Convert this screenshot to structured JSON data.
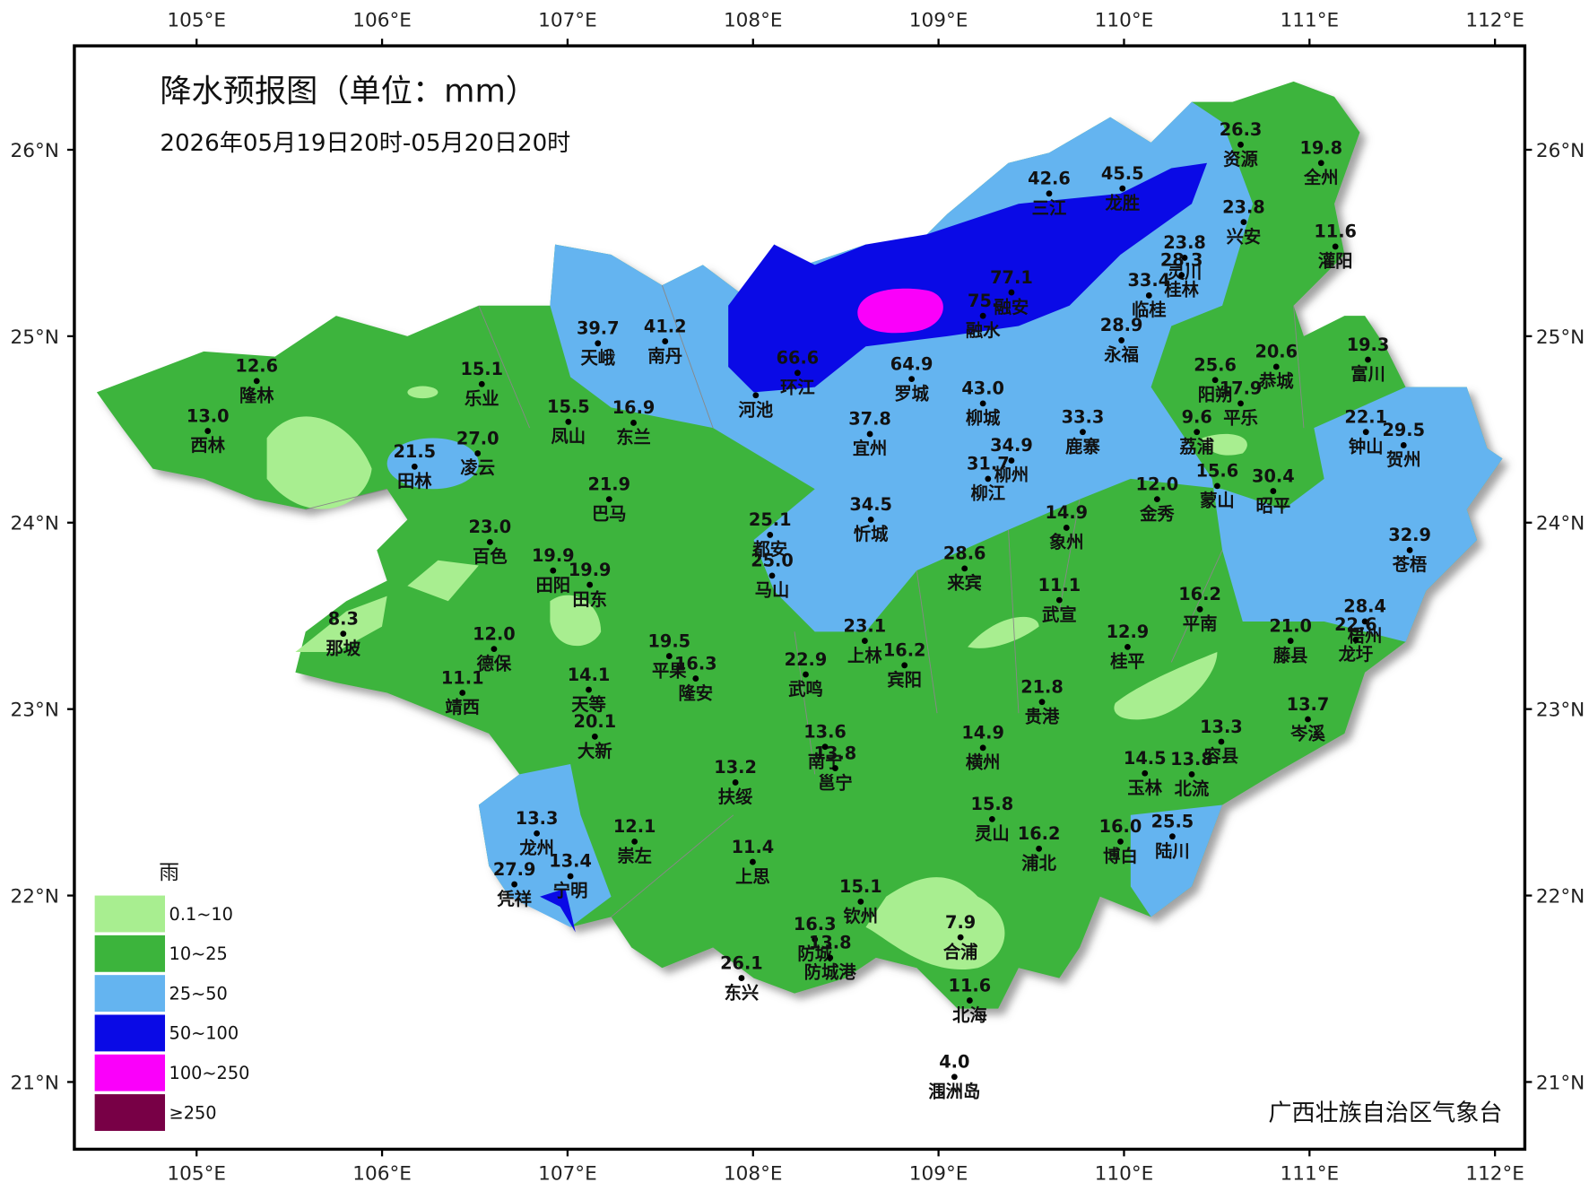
{
  "title": "降水预报图（单位：mm）",
  "subtitle": "2026年05月19日20时-05月20日20时",
  "lon_labels": [
    "105°E",
    "106°E",
    "107°E",
    "108°E",
    "109°E",
    "110°E",
    "111°E",
    "112°E"
  ],
  "lat_labels": [
    "26°N",
    "25°N",
    "24°N",
    "23°N",
    "22°N",
    "21°N"
  ],
  "legend": {
    "title": "雨",
    "items": [
      {
        "label": "0.1~10",
        "color": "#a8ee90"
      },
      {
        "label": "10~25",
        "color": "#3cb43c"
      },
      {
        "label": "25~50",
        "color": "#64b4f0"
      },
      {
        "label": "50~100",
        "color": "#0a0ae6"
      },
      {
        "label": "100~250",
        "color": "#fa00fa"
      },
      {
        "label": "≥250",
        "color": "#780046"
      }
    ]
  },
  "stations": [
    {
      "name": "资源",
      "value": "26.3"
    },
    {
      "name": "全州",
      "value": "19.8"
    },
    {
      "name": "兴安",
      "value": "23.8"
    },
    {
      "name": "灌阳",
      "value": "11.6"
    },
    {
      "name": "三江",
      "value": "42.6"
    },
    {
      "name": "龙胜",
      "value": "45.5"
    },
    {
      "name": "灵川",
      "value": "23.8"
    },
    {
      "name": "桂林",
      "value": "28.3"
    },
    {
      "name": "临桂",
      "value": "33.4"
    },
    {
      "name": "融安",
      "value": "77.1"
    },
    {
      "name": "融水",
      "value": "75."
    },
    {
      "name": "永福",
      "value": "28.9"
    },
    {
      "name": "天峨",
      "value": "39.7"
    },
    {
      "name": "南丹",
      "value": "41.2"
    },
    {
      "name": "环江",
      "value": "66.6"
    },
    {
      "name": "河池"
    },
    {
      "name": "罗城",
      "value": "64.9"
    },
    {
      "name": "柳城",
      "value": "43.0"
    },
    {
      "name": "鹿寨",
      "value": "33.3"
    },
    {
      "name": "阳朔",
      "value": "25.6"
    },
    {
      "name": "平乐",
      "value": "17.9"
    },
    {
      "name": "恭城",
      "value": "20.6"
    },
    {
      "name": "富川",
      "value": "19.3"
    },
    {
      "name": "荔浦",
      "value": "9.6"
    },
    {
      "name": "钟山",
      "value": "22.1"
    },
    {
      "name": "贺州",
      "value": "29.5"
    },
    {
      "name": "隆林",
      "value": "12.6"
    },
    {
      "name": "乐业",
      "value": "15.1"
    },
    {
      "name": "西林",
      "value": "13.0"
    },
    {
      "name": "凤山",
      "value": "15.5"
    },
    {
      "name": "东兰",
      "value": "16.9"
    },
    {
      "name": "田林",
      "value": "21.5"
    },
    {
      "name": "凌云",
      "value": "27.0"
    },
    {
      "name": "宜州",
      "value": "37.8"
    },
    {
      "name": "柳州",
      "value": "34.9"
    },
    {
      "name": "柳江",
      "value": "31.7"
    },
    {
      "name": "巴马",
      "value": "21.9"
    },
    {
      "name": "金秀",
      "value": "12.0"
    },
    {
      "name": "蒙山",
      "value": "15.6"
    },
    {
      "name": "昭平",
      "value": "30.4"
    },
    {
      "name": "忻城",
      "value": "34.5"
    },
    {
      "name": "象州",
      "value": "14.9"
    },
    {
      "name": "百色",
      "value": "23.0"
    },
    {
      "name": "都安",
      "value": "25.1"
    },
    {
      "name": "马山",
      "value": "25.0"
    },
    {
      "name": "田阳",
      "value": "19.9"
    },
    {
      "name": "田东",
      "value": "19.9"
    },
    {
      "name": "来宾",
      "value": "28.6"
    },
    {
      "name": "苍梧",
      "value": "32.9"
    },
    {
      "name": "武宣",
      "value": "11.1"
    },
    {
      "name": "平南",
      "value": "16.2"
    },
    {
      "name": "那坡",
      "value": "8.3"
    },
    {
      "name": "德保",
      "value": "12.0"
    },
    {
      "name": "上林",
      "value": "23.1"
    },
    {
      "name": "宾阳",
      "value": "16.2"
    },
    {
      "name": "平果",
      "value": "19.5"
    },
    {
      "name": "隆安",
      "value": "16.3"
    },
    {
      "name": "武鸣",
      "value": "22.9"
    },
    {
      "name": "桂平",
      "value": "12.9"
    },
    {
      "name": "藤县",
      "value": "21.0"
    },
    {
      "name": "梧州",
      "value": "28.4"
    },
    {
      "name": "龙圩",
      "value": "22.6"
    },
    {
      "name": "靖西",
      "value": "11.1"
    },
    {
      "name": "天等",
      "value": "14.1"
    },
    {
      "name": "大新",
      "value": "20.1"
    },
    {
      "name": "贵港",
      "value": "21.8"
    },
    {
      "name": "岑溪",
      "value": "13.7"
    },
    {
      "name": "南宁",
      "value": "13.6"
    },
    {
      "name": "邕宁",
      "value": "13.8"
    },
    {
      "name": "横州",
      "value": "14.9"
    },
    {
      "name": "容县",
      "value": "13.3"
    },
    {
      "name": "玉林",
      "value": "14.5"
    },
    {
      "name": "扶绥",
      "value": "13.2"
    },
    {
      "name": "北流",
      "value": "13.8"
    },
    {
      "name": "龙州",
      "value": "13.3"
    },
    {
      "name": "崇左",
      "value": "12.1"
    },
    {
      "name": "灵山",
      "value": "15.8"
    },
    {
      "name": "浦北",
      "value": "16.2"
    },
    {
      "name": "博白",
      "value": "16.0"
    },
    {
      "name": "陆川",
      "value": "25.5"
    },
    {
      "name": "上思",
      "value": "11.4"
    },
    {
      "name": "宁明",
      "value": "13.4"
    },
    {
      "name": "凭祥",
      "value": "27.9"
    },
    {
      "name": "钦州",
      "value": "15.1"
    },
    {
      "name": "防城",
      "value": "16.3"
    },
    {
      "name": "防城港",
      "value": "13.8"
    },
    {
      "name": "合浦",
      "value": "7.9"
    },
    {
      "name": "东兴",
      "value": "26.1"
    },
    {
      "name": "北海",
      "value": "11.6"
    },
    {
      "name": "涠洲岛",
      "value": "4.0"
    }
  ],
  "source": "广西壮族自治区气象台"
}
